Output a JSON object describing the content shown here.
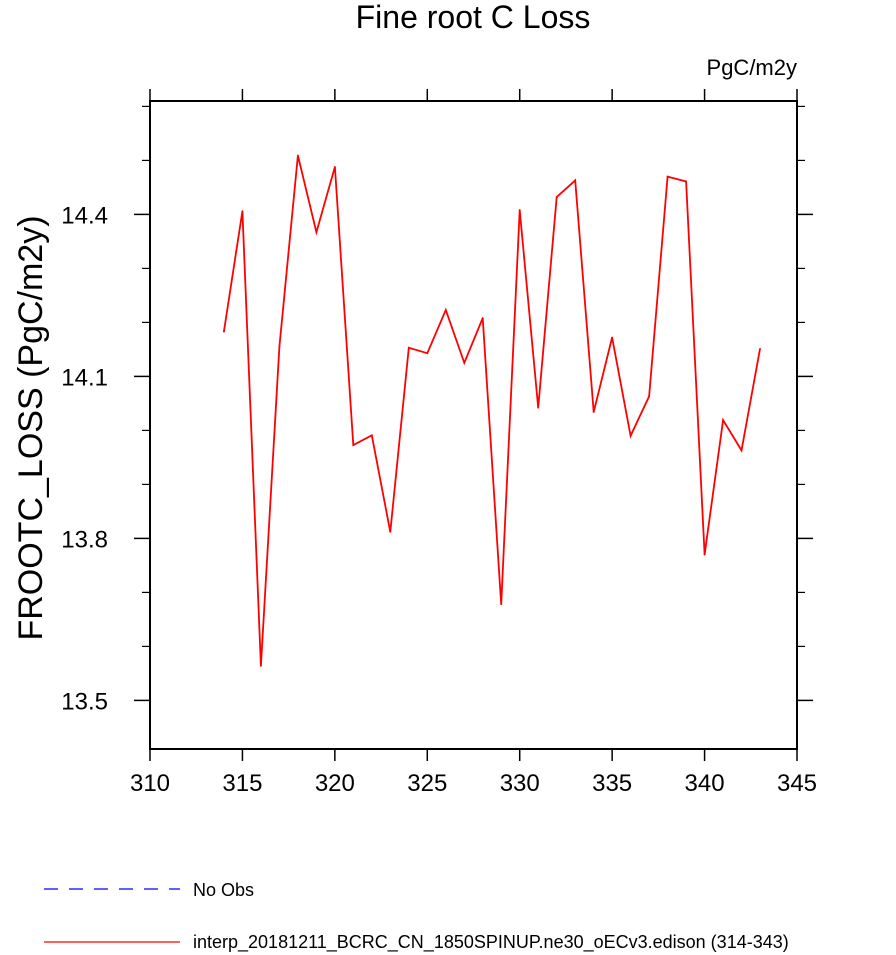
{
  "chart_data": {
    "type": "line",
    "title": "Fine root C Loss",
    "units": "PgC/m2y",
    "ylabel": "FROOTC_LOSS  (PgC/m2y)",
    "xlabel": "",
    "xlim": [
      310,
      345
    ],
    "ylim": [
      13.41,
      14.61
    ],
    "xticks": [
      310,
      315,
      320,
      325,
      330,
      335,
      340,
      345
    ],
    "xtick_labels": [
      "310",
      "315",
      "320",
      "325",
      "330",
      "335",
      "340",
      "345"
    ],
    "yticks": [
      13.5,
      13.8,
      14.1,
      14.4
    ],
    "ytick_labels": [
      "13.5",
      "13.8",
      "14.1",
      "14.4"
    ],
    "grid": false,
    "x": [
      314,
      315,
      316,
      317,
      318,
      319,
      320,
      321,
      322,
      323,
      324,
      325,
      326,
      327,
      328,
      329,
      330,
      331,
      332,
      333,
      334,
      335,
      336,
      337,
      338,
      339,
      340,
      341,
      342,
      343
    ],
    "series": [
      {
        "name": "interp_20181211_BCRC_CN_1850SPINUP.ne30_oECv3.edison (314-343)",
        "color": "#ff0000",
        "style": "solid",
        "values": [
          14.183,
          14.406,
          13.564,
          14.155,
          14.509,
          14.367,
          14.488,
          13.973,
          13.991,
          13.812,
          14.153,
          14.143,
          14.223,
          14.125,
          14.208,
          13.678,
          14.408,
          14.042,
          14.432,
          14.463,
          14.034,
          14.172,
          13.99,
          14.063,
          14.47,
          14.461,
          13.77,
          14.019,
          13.963,
          14.151
        ]
      }
    ],
    "legend": {
      "placement": "bottom-left",
      "entries": [
        {
          "label": "No Obs",
          "color": "#0000ff",
          "style": "dashed"
        },
        {
          "label": "interp_20181211_BCRC_CN_1850SPINUP.ne30_oECv3.edison (314-343)",
          "color": "#ff0000",
          "style": "solid"
        }
      ]
    }
  }
}
